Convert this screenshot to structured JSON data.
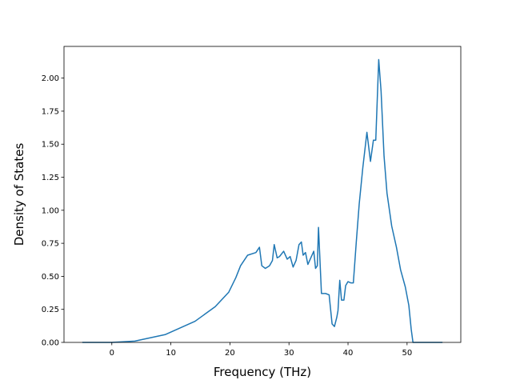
{
  "chart_data": {
    "type": "line",
    "title": "",
    "xlabel": "Frequency (THz)",
    "ylabel": "Density of States",
    "xlim": [
      -8.1,
      59.1
    ],
    "ylim": [
      0,
      2.24
    ],
    "x_ticks": [
      0,
      10,
      20,
      30,
      40,
      50
    ],
    "x_tick_labels": [
      "0",
      "10",
      "20",
      "30",
      "40",
      "50"
    ],
    "y_ticks": [
      0,
      0.25,
      0.5,
      0.75,
      1.0,
      1.25,
      1.5,
      1.75,
      2.0
    ],
    "y_tick_labels": [
      "0.00",
      "0.25",
      "0.50",
      "0.75",
      "1.00",
      "1.25",
      "1.50",
      "1.75",
      "2.00"
    ],
    "grid": false,
    "legend": false,
    "series": [
      {
        "color": "#1f77b4",
        "x": [
          -5,
          0,
          3.9,
          9.1,
          14.1,
          17.5,
          19.8,
          21.0,
          21.8,
          23.0,
          24.4,
          25.0,
          25.4,
          26.0,
          26.7,
          27.2,
          27.5,
          28.0,
          28.4,
          29.1,
          29.7,
          30.2,
          30.7,
          31.2,
          31.7,
          32.1,
          32.4,
          32.8,
          33.2,
          33.7,
          34.2,
          34.5,
          34.8,
          35.0,
          35.5,
          36.2,
          36.8,
          37.3,
          37.7,
          38.1,
          38.3,
          38.6,
          38.9,
          39.3,
          39.6,
          40.0,
          40.5,
          40.9,
          41.4,
          41.9,
          42.5,
          43.2,
          43.8,
          44.3,
          44.7,
          45.2,
          45.6,
          46.1,
          46.6,
          47.4,
          48.2,
          48.9,
          49.7,
          50.3,
          50.7,
          51.0,
          51.5,
          52.5,
          56.0
        ],
        "y": [
          0,
          0,
          0.01,
          0.06,
          0.16,
          0.27,
          0.38,
          0.49,
          0.58,
          0.66,
          0.68,
          0.72,
          0.58,
          0.56,
          0.58,
          0.62,
          0.74,
          0.64,
          0.65,
          0.69,
          0.63,
          0.65,
          0.57,
          0.62,
          0.74,
          0.76,
          0.66,
          0.68,
          0.59,
          0.64,
          0.69,
          0.56,
          0.58,
          0.87,
          0.37,
          0.37,
          0.36,
          0.14,
          0.12,
          0.19,
          0.24,
          0.47,
          0.32,
          0.32,
          0.43,
          0.46,
          0.45,
          0.45,
          0.76,
          1.05,
          1.32,
          1.59,
          1.37,
          1.53,
          1.53,
          2.14,
          1.9,
          1.41,
          1.13,
          0.88,
          0.72,
          0.55,
          0.42,
          0.28,
          0.1,
          0,
          0,
          0,
          0
        ]
      }
    ]
  }
}
